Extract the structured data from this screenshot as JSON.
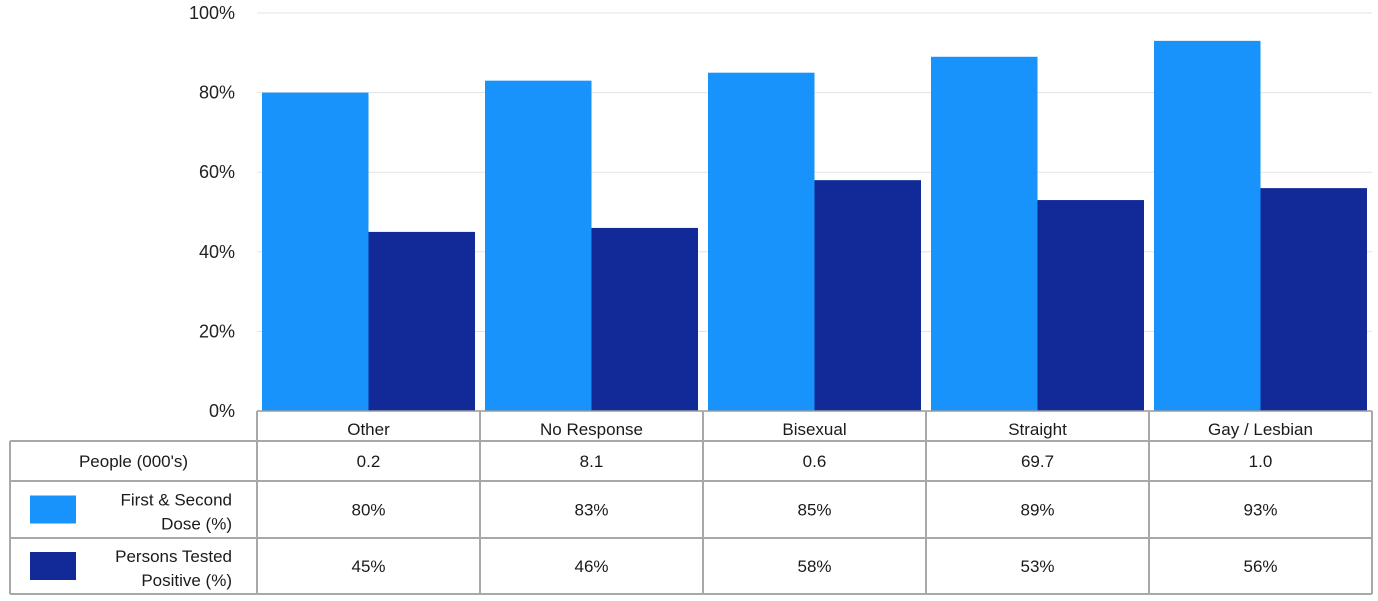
{
  "chart_data": {
    "type": "bar",
    "categories": [
      "Other",
      "No Response",
      "Bisexual",
      "Straight",
      "Gay / Lesbian"
    ],
    "series": [
      {
        "name": "First & Second Dose (%)",
        "legend_lines": [
          "First & Second",
          "Dose (%)"
        ],
        "color": "#1793fb",
        "values": [
          80,
          83,
          85,
          89,
          93
        ],
        "labels": [
          "80%",
          "83%",
          "85%",
          "89%",
          "93%"
        ]
      },
      {
        "name": "Persons Tested Positive (%)",
        "legend_lines": [
          "Persons Tested",
          "Positive (%)"
        ],
        "color": "#112a97",
        "values": [
          45,
          46,
          58,
          53,
          56
        ],
        "labels": [
          "45%",
          "46%",
          "58%",
          "53%",
          "56%"
        ]
      }
    ],
    "ylim": [
      0,
      100
    ],
    "yticks": [
      "0%",
      "20%",
      "40%",
      "60%",
      "80%",
      "100%"
    ],
    "ytick_values": [
      0,
      20,
      40,
      60,
      80,
      100
    ],
    "grid": true,
    "table": {
      "people_label": "People (000's)",
      "people_values": [
        "0.2",
        "8.1",
        "0.6",
        "69.7",
        "1.0"
      ]
    }
  }
}
